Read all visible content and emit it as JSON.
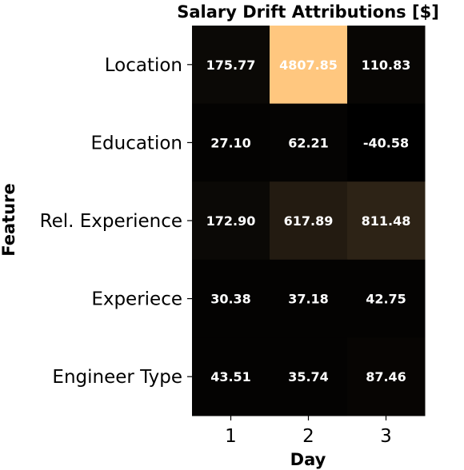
{
  "chart_data": {
    "type": "heatmap",
    "title": "Salary Drift Attributions [$]",
    "xlabel": "Day",
    "ylabel": "Feature",
    "x_categories": [
      "1",
      "2",
      "3"
    ],
    "y_categories": [
      "Location",
      "Education",
      "Rel. Experience",
      "Experiece",
      "Engineer Type"
    ],
    "values": [
      [
        175.77,
        4807.85,
        110.83
      ],
      [
        27.1,
        62.21,
        -40.58
      ],
      [
        172.9,
        617.89,
        811.48
      ],
      [
        30.38,
        37.18,
        42.75
      ],
      [
        43.51,
        35.74,
        87.46
      ]
    ],
    "cell_labels": [
      [
        "175.77",
        "4807.85",
        "110.83"
      ],
      [
        "27.10",
        "62.21",
        "-40.58"
      ],
      [
        "172.90",
        "617.89",
        "811.48"
      ],
      [
        "30.38",
        "37.18",
        "42.75"
      ],
      [
        "43.51",
        "35.74",
        "87.46"
      ]
    ],
    "colormap": "copper",
    "colormap_low": "#000000",
    "colormap_high": "#ffc77f"
  }
}
